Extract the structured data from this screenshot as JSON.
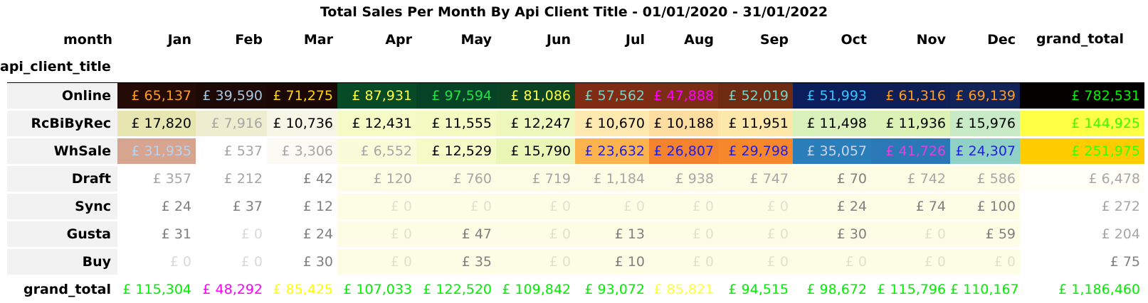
{
  "chart_data": {
    "type": "table",
    "title": "Total Sales Per Month By Api Client Title - 01/01/2020 - 31/01/2022",
    "column_header_label": "month",
    "row_header_label": "api_client_title",
    "columns": [
      "Jan",
      "Feb",
      "Mar",
      "Apr",
      "May",
      "Jun",
      "Jul",
      "Aug",
      "Sep",
      "Oct",
      "Nov",
      "Dec",
      "grand_total"
    ],
    "rows": [
      {
        "label": "Online",
        "values": [
          "£ 65,137",
          "£ 39,590",
          "£ 71,275",
          "£ 87,931",
          "£ 97,594",
          "£ 81,086",
          "£ 57,562",
          "£ 47,888",
          "£ 52,019",
          "£ 51,993",
          "£ 61,316",
          "£ 69,139",
          "£ 782,531"
        ],
        "bg": [
          "#240b05",
          "#1d0a06",
          "#1b0806",
          "#064a26",
          "#064326",
          "#0b4424",
          "#802c14",
          "#7c2e14",
          "#6f2b12",
          "#0c1d5c",
          "#0e1f57",
          "#122359",
          "#050000"
        ],
        "fg": [
          "#ff9d1e",
          "#a9c6e1",
          "#ffd700",
          "#ffff3c",
          "#22e046",
          "#ffff3c",
          "#7ad0c6",
          "#ff00ff",
          "#7ad0c6",
          "#35c4ff",
          "#ff9d1e",
          "#ff9d1e",
          "#00f000"
        ]
      },
      {
        "label": "RcBiByRec",
        "values": [
          "£ 17,820",
          "£ 7,916",
          "£ 10,736",
          "£ 12,431",
          "£ 11,555",
          "£ 12,247",
          "£ 10,670",
          "£ 10,188",
          "£ 11,951",
          "£ 11,498",
          "£ 11,936",
          "£ 15,976",
          "£ 144,925"
        ],
        "bg": [
          "#e7e6b1",
          "#eeedd0",
          "#f6f6e6",
          "#f5fbc4",
          "#f4fbc2",
          "#eff8bc",
          "#fde9af",
          "#fddea0",
          "#fde8a9",
          "#dbf1bb",
          "#dcf1b5",
          "#c8eac6",
          "#ffff46"
        ],
        "fg": [
          "#000000",
          "#a6a6a6",
          "#000000",
          "#000000",
          "#000000",
          "#000000",
          "#000000",
          "#000000",
          "#000000",
          "#000000",
          "#000000",
          "#000000",
          "#33ff00"
        ]
      },
      {
        "label": "WhSale",
        "values": [
          "£ 31,935",
          "£ 537",
          "£ 3,306",
          "£ 6,552",
          "£ 12,529",
          "£ 15,790",
          "£ 23,632",
          "£ 26,807",
          "£ 29,798",
          "£ 35,057",
          "£ 41,726",
          "£ 24,307",
          "£ 251,975"
        ],
        "bg": [
          "#d6a48f",
          "#ffffff",
          "#fbfaf4",
          "#f9fcd8",
          "#f5fbc7",
          "#eaf6b5",
          "#fdb34e",
          "#f5822c",
          "#f6872a",
          "#2a7fba",
          "#2b78b6",
          "#8fd2c5",
          "#ffcc00"
        ],
        "fg": [
          "#b9d2ee",
          "#a6a6a6",
          "#a6a6a6",
          "#a6a6a6",
          "#000000",
          "#000000",
          "#1f1fe0",
          "#1f1fe0",
          "#1f1fe0",
          "#c9d6ea",
          "#e040e0",
          "#1f1fe0",
          "#33ff00"
        ]
      },
      {
        "label": "Draft",
        "values": [
          "£ 357",
          "£ 212",
          "£ 42",
          "£ 120",
          "£ 760",
          "£ 719",
          "£ 1,184",
          "£ 938",
          "£ 747",
          "£ 70",
          "£ 742",
          "£ 586",
          "£ 6,478"
        ],
        "bg": [
          "#ffffff",
          "#ffffff",
          "#ffffff",
          "#fdfde6",
          "#fdfde6",
          "#fdfde6",
          "#fdfde6",
          "#fdfde6",
          "#fdfde6",
          "#fdfde6",
          "#fdfde6",
          "#fdfde6",
          "#fffff8"
        ],
        "fg": [
          "#a6a6a6",
          "#a6a6a6",
          "#808080",
          "#a6a6a6",
          "#a6a6a6",
          "#a6a6a6",
          "#a6a6a6",
          "#a6a6a6",
          "#a6a6a6",
          "#808080",
          "#a6a6a6",
          "#a6a6a6",
          "#a6a6a6"
        ]
      },
      {
        "label": "Sync",
        "values": [
          "£ 24",
          "£ 37",
          "£ 12",
          "£ 0",
          "£ 0",
          "£ 0",
          "£ 0",
          "£ 0",
          "£ 0",
          "£ 24",
          "£ 74",
          "£ 100",
          "£ 272"
        ],
        "bg": [
          "#ffffff",
          "#ffffff",
          "#ffffff",
          "#fdfde6",
          "#fdfde6",
          "#fdfde6",
          "#fdfde6",
          "#fdfde6",
          "#fdfde6",
          "#fdfde6",
          "#fdfde6",
          "#fdfde6",
          "#ffffff"
        ],
        "fg": [
          "#808080",
          "#808080",
          "#808080",
          "#e2e2c8",
          "#e2e2c8",
          "#e2e2c8",
          "#e2e2c8",
          "#e2e2c8",
          "#e2e2c8",
          "#808080",
          "#808080",
          "#808080",
          "#a6a6a6"
        ]
      },
      {
        "label": "Gusta",
        "values": [
          "£ 31",
          "£ 0",
          "£ 24",
          "£ 0",
          "£ 47",
          "£ 0",
          "£ 13",
          "£ 0",
          "£ 0",
          "£ 30",
          "£ 0",
          "£ 59",
          "£ 204"
        ],
        "bg": [
          "#ffffff",
          "#ffffff",
          "#ffffff",
          "#fdfde6",
          "#fdfde6",
          "#fdfde6",
          "#fdfde6",
          "#fdfde6",
          "#fdfde6",
          "#fdfde6",
          "#fdfde6",
          "#fdfde6",
          "#ffffff"
        ],
        "fg": [
          "#808080",
          "#d9d9d9",
          "#808080",
          "#e2e2c8",
          "#808080",
          "#e2e2c8",
          "#808080",
          "#e2e2c8",
          "#e2e2c8",
          "#808080",
          "#e2e2c8",
          "#808080",
          "#a6a6a6"
        ]
      },
      {
        "label": "Buy",
        "values": [
          "£ 0",
          "£ 0",
          "£ 30",
          "£ 0",
          "£ 35",
          "£ 0",
          "£ 10",
          "£ 0",
          "£ 0",
          "£ 0",
          "£ 0",
          "£ 0",
          "£ 75"
        ],
        "bg": [
          "#ffffff",
          "#ffffff",
          "#ffffff",
          "#fdfde6",
          "#fdfde6",
          "#fdfde6",
          "#fdfde6",
          "#fdfde6",
          "#fdfde6",
          "#fdfde6",
          "#fdfde6",
          "#fdfde6",
          "#ffffff"
        ],
        "fg": [
          "#d9d9d9",
          "#d9d9d9",
          "#808080",
          "#e2e2c8",
          "#808080",
          "#e2e2c8",
          "#808080",
          "#e2e2c8",
          "#e2e2c8",
          "#e2e2c8",
          "#e2e2c8",
          "#e2e2c8",
          "#808080"
        ]
      },
      {
        "label": "grand_total",
        "values": [
          "£ 115,304",
          "£ 48,292",
          "£ 85,425",
          "£ 107,033",
          "£ 122,520",
          "£ 109,842",
          "£ 93,072",
          "£ 85,821",
          "£ 94,515",
          "£ 98,672",
          "£ 115,796",
          "£ 110,167",
          "£ 1,186,460"
        ],
        "bg": [
          "#ffffff",
          "#ffffff",
          "#ffffff",
          "#ffffff",
          "#ffffff",
          "#ffffff",
          "#ffffff",
          "#ffffff",
          "#ffffff",
          "#ffffff",
          "#ffffff",
          "#ffffff",
          "#ffffff"
        ],
        "fg": [
          "#00f000",
          "#ff00ff",
          "#ffff00",
          "#00f000",
          "#00f000",
          "#00f000",
          "#00f000",
          "#ffff33",
          "#00f000",
          "#00f000",
          "#00f000",
          "#00f000",
          "#00f000"
        ]
      }
    ]
  }
}
